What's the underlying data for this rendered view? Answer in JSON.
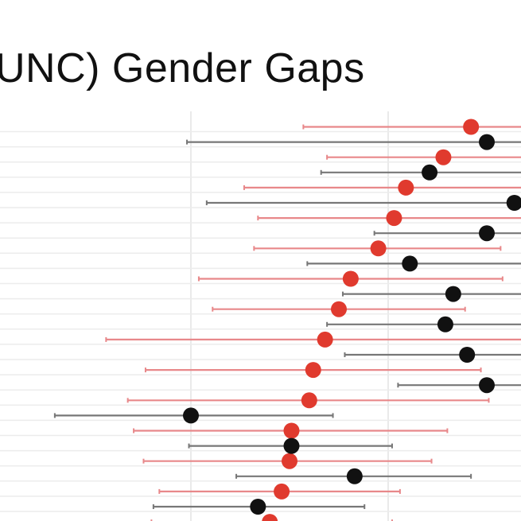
{
  "title": "UNC) Gender Gaps",
  "chart_data": {
    "type": "scatter",
    "subtype": "dot-and-whisker",
    "title": "UNC) Gender Gaps",
    "grid": true,
    "xlim": [
      -1.0,
      2.7
    ],
    "vlines": [
      0,
      1
    ],
    "colors": {
      "women": "#e03a2e",
      "men": "#111111",
      "women_ci": "#e8888a",
      "men_ci": "#777777",
      "grid": "#e4e4e4"
    },
    "series": [
      {
        "color": "#e03a2e",
        "points": [
          {
            "row": 1,
            "x": 1.42,
            "lo": 0.57,
            "hi": 2.3
          },
          {
            "row": 3,
            "x": 1.28,
            "lo": 0.69,
            "hi": 2.3
          },
          {
            "row": 5,
            "x": 1.09,
            "lo": 0.27,
            "hi": 2.3
          },
          {
            "row": 7,
            "x": 1.03,
            "lo": 0.34,
            "hi": 2.3
          },
          {
            "row": 9,
            "x": 0.95,
            "lo": 0.32,
            "hi": 1.57
          },
          {
            "row": 11,
            "x": 0.81,
            "lo": 0.04,
            "hi": 1.58
          },
          {
            "row": 13,
            "x": 0.75,
            "lo": 0.11,
            "hi": 1.39
          },
          {
            "row": 15,
            "x": 0.68,
            "lo": -0.43,
            "hi": 2.3
          },
          {
            "row": 17,
            "x": 0.62,
            "lo": -0.23,
            "hi": 1.47
          },
          {
            "row": 19,
            "x": 0.6,
            "lo": -0.32,
            "hi": 1.51
          },
          {
            "row": 21,
            "x": 0.51,
            "lo": -0.29,
            "hi": 1.3
          },
          {
            "row": 23,
            "x": 0.5,
            "lo": -0.24,
            "hi": 1.22
          },
          {
            "row": 25,
            "x": 0.46,
            "lo": -0.16,
            "hi": 1.06
          },
          {
            "row": 27,
            "x": 0.4,
            "lo": -0.2,
            "hi": 1.02
          }
        ]
      },
      {
        "color": "#111111",
        "points": [
          {
            "row": 2,
            "x": 1.5,
            "lo": -0.02,
            "hi": 2.3
          },
          {
            "row": 4,
            "x": 1.21,
            "lo": 0.66,
            "hi": 2.3
          },
          {
            "row": 6,
            "x": 1.64,
            "lo": 0.08,
            "hi": 2.3
          },
          {
            "row": 8,
            "x": 1.5,
            "lo": 0.93,
            "hi": 2.3
          },
          {
            "row": 10,
            "x": 1.11,
            "lo": 0.59,
            "hi": 2.3
          },
          {
            "row": 12,
            "x": 1.33,
            "lo": 0.77,
            "hi": 2.3
          },
          {
            "row": 14,
            "x": 1.29,
            "lo": 0.69,
            "hi": 2.3
          },
          {
            "row": 16,
            "x": 1.4,
            "lo": 0.78,
            "hi": 2.3
          },
          {
            "row": 18,
            "x": 1.5,
            "lo": 1.05,
            "hi": 2.3
          },
          {
            "row": 20,
            "x": 0.0,
            "lo": -0.69,
            "hi": 0.72
          },
          {
            "row": 22,
            "x": 0.51,
            "lo": -0.01,
            "hi": 1.02
          },
          {
            "row": 24,
            "x": 0.83,
            "lo": 0.23,
            "hi": 1.42
          },
          {
            "row": 26,
            "x": 0.34,
            "lo": -0.19,
            "hi": 0.88
          }
        ]
      }
    ]
  }
}
